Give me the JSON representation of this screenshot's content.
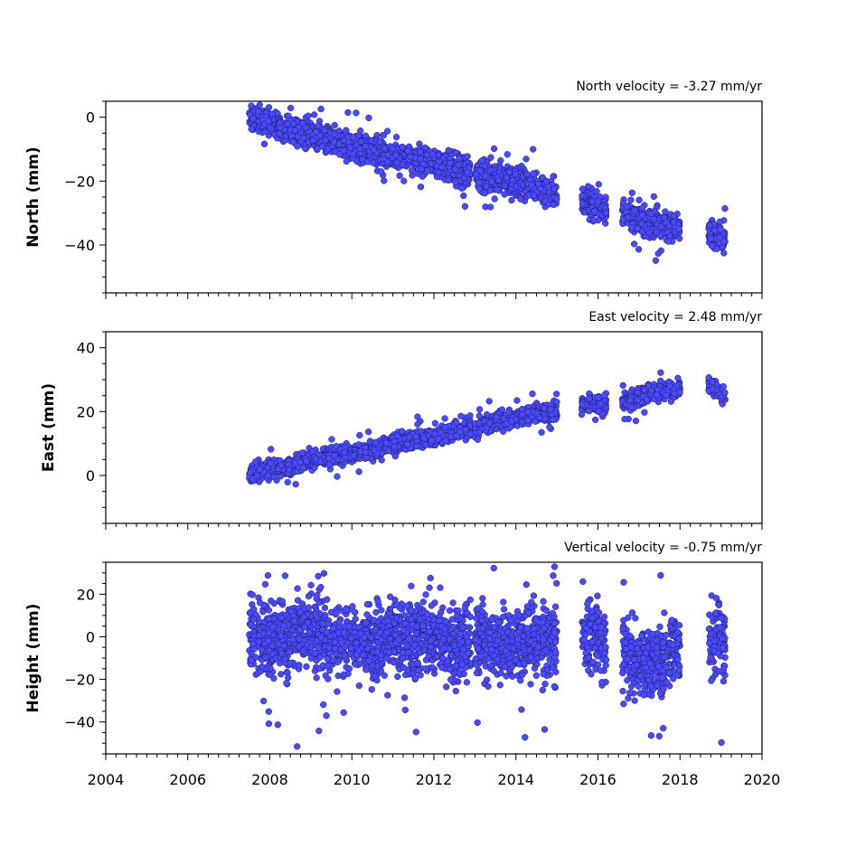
{
  "chart_data": [
    {
      "type": "scatter",
      "title": "North velocity = -3.27 mm/yr",
      "ylabel": "North (mm)",
      "xlim": [
        2004,
        2020
      ],
      "ylim": [
        -55,
        5
      ],
      "yticks": [
        0,
        -20,
        -40
      ],
      "color": "#4a4aff",
      "velocity_mm_per_yr": -3.27,
      "data_coverage": [
        [
          2007.5,
          2008.2
        ],
        [
          2008.2,
          2012.9
        ],
        [
          2013.0,
          2015.0
        ],
        [
          2015.6,
          2016.2
        ],
        [
          2016.6,
          2018.0
        ],
        [
          2018.7,
          2019.1
        ]
      ],
      "x": [
        2007.5,
        2008.0,
        2008.5,
        2009.0,
        2009.5,
        2010.0,
        2010.5,
        2011.0,
        2011.5,
        2012.0,
        2012.5,
        2013.0,
        2013.5,
        2014.0,
        2014.5,
        2015.0,
        2015.8,
        2016.0,
        2016.8,
        2017.0,
        2017.5,
        2018.0,
        2018.8,
        2019.0
      ],
      "y": [
        0,
        -2,
        -4,
        -5,
        -7,
        -9,
        -10,
        -12,
        -13,
        -14,
        -16,
        -18,
        -19,
        -20,
        -22,
        -24,
        -27,
        -28,
        -31,
        -33,
        -34,
        -35,
        -36,
        -38
      ]
    },
    {
      "type": "scatter",
      "title": "East velocity = 2.48 mm/yr",
      "ylabel": "East (mm)",
      "xlim": [
        2004,
        2020
      ],
      "ylim": [
        -15,
        45
      ],
      "yticks": [
        0,
        20,
        40
      ],
      "color": "#4a4aff",
      "velocity_mm_per_yr": 2.48,
      "data_coverage": [
        [
          2007.5,
          2008.2
        ],
        [
          2008.2,
          2012.9
        ],
        [
          2013.0,
          2015.0
        ],
        [
          2015.6,
          2016.2
        ],
        [
          2016.6,
          2018.0
        ],
        [
          2018.7,
          2019.1
        ]
      ],
      "x": [
        2007.5,
        2008.0,
        2008.5,
        2009.0,
        2009.5,
        2010.0,
        2010.5,
        2011.0,
        2011.5,
        2012.0,
        2012.5,
        2013.0,
        2013.5,
        2014.0,
        2014.5,
        2015.0,
        2015.8,
        2016.0,
        2016.8,
        2017.0,
        2017.5,
        2018.0,
        2018.8,
        2019.0
      ],
      "y": [
        0,
        2,
        3,
        5,
        6,
        7,
        8,
        10,
        11,
        12,
        14,
        15,
        17,
        18,
        19,
        20,
        22,
        22,
        24,
        25,
        26,
        27,
        28,
        25
      ]
    },
    {
      "type": "scatter",
      "title": "Vertical velocity = -0.75 mm/yr",
      "ylabel": "Height (mm)",
      "xlim": [
        2004,
        2020
      ],
      "ylim": [
        -55,
        35
      ],
      "yticks": [
        20,
        0,
        -20,
        -40
      ],
      "color": "#4a4aff",
      "velocity_mm_per_yr": -0.75,
      "data_coverage": [
        [
          2007.5,
          2008.2
        ],
        [
          2008.2,
          2012.9
        ],
        [
          2013.0,
          2015.0
        ],
        [
          2015.6,
          2016.2
        ],
        [
          2016.6,
          2018.0
        ],
        [
          2018.7,
          2019.1
        ]
      ],
      "x": [
        2007.5,
        2008.0,
        2008.5,
        2009.0,
        2009.5,
        2010.0,
        2010.5,
        2011.0,
        2011.5,
        2012.0,
        2012.5,
        2013.0,
        2013.5,
        2014.0,
        2014.5,
        2015.0,
        2015.8,
        2016.0,
        2016.8,
        2017.0,
        2017.5,
        2018.0,
        2018.8,
        2019.0
      ],
      "y": [
        0,
        -2,
        0,
        2,
        -3,
        -1,
        -4,
        0,
        -2,
        1,
        -5,
        0,
        -3,
        -4,
        -2,
        -3,
        -2,
        0,
        -10,
        -12,
        -13,
        -5,
        -3,
        0
      ]
    }
  ],
  "xaxis": {
    "ticks": [
      2004,
      2006,
      2008,
      2010,
      2012,
      2014,
      2016,
      2018,
      2020
    ],
    "minor_step": 0.25
  }
}
